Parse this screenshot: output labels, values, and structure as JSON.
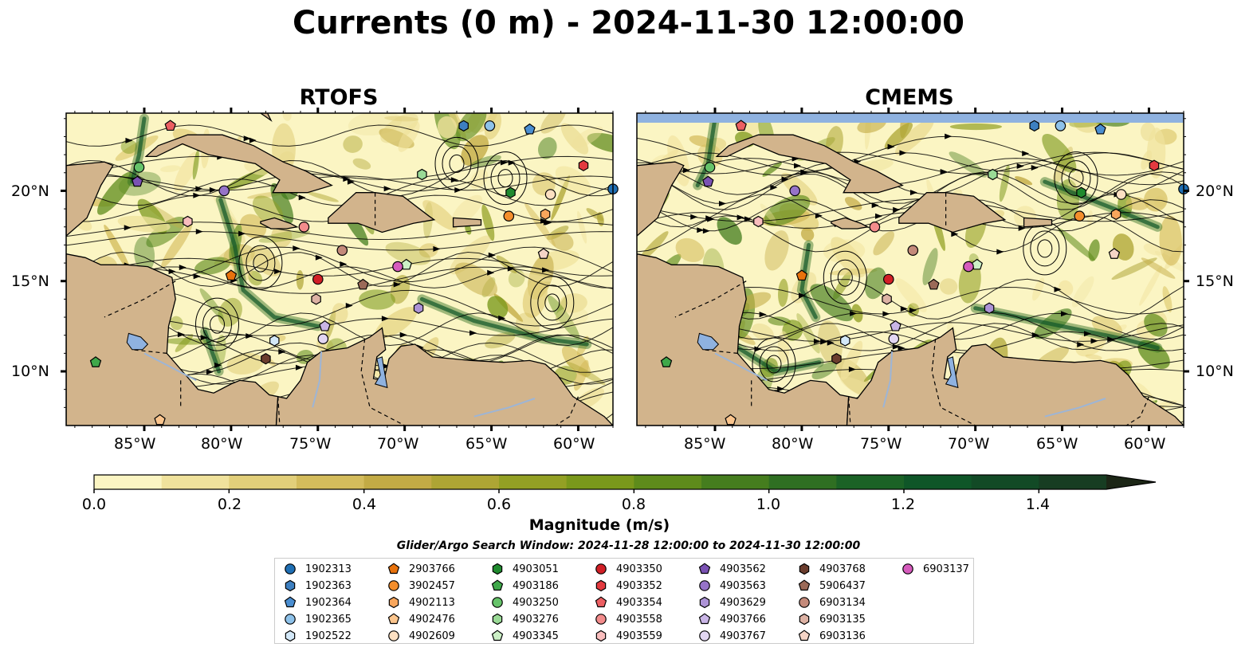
{
  "title": "Currents (0 m) - 2024-11-30 12:00:00",
  "panels": [
    {
      "title": "RTOFS"
    },
    {
      "title": "CMEMS"
    }
  ],
  "axes": {
    "lon_labels": [
      "85°W",
      "80°W",
      "75°W",
      "70°W",
      "65°W",
      "60°W"
    ],
    "lat_labels": [
      "20°N",
      "15°N",
      "10°N"
    ],
    "lon_range": [
      -89.5,
      -58.0
    ],
    "lat_range": [
      7.0,
      24.3
    ]
  },
  "colorbar": {
    "label": "Magnitude (m/s)",
    "ticks": [
      "0.0",
      "0.2",
      "0.4",
      "0.6",
      "0.8",
      "1.0",
      "1.2",
      "1.4"
    ],
    "range": [
      0.0,
      1.5
    ],
    "extend": "max",
    "colors": [
      "#fbf5c3",
      "#f0e29c",
      "#e2cf7a",
      "#d4bc5c",
      "#c3ab45",
      "#aea534",
      "#93a024",
      "#7a981b",
      "#5e8b1b",
      "#457d1e",
      "#2f6f22",
      "#1b6226",
      "#0f5628",
      "#124a26",
      "#173d22",
      "#1a3119",
      "#1c2616"
    ]
  },
  "search_window": "Glider/Argo Search Window: 2024-11-28 12:00:00 to 2024-11-30 12:00:00",
  "land_color": "#d2b48c",
  "ocean_low_color": "#fbf5c3",
  "lake_color": "#8fb2e0",
  "legend": [
    {
      "id": "1902313",
      "marker": "circle",
      "color": "#1f6fb4"
    },
    {
      "id": "1902363",
      "marker": "hexagon",
      "color": "#3d7fc0"
    },
    {
      "id": "1902364",
      "marker": "pentagon",
      "color": "#4a8ed1"
    },
    {
      "id": "1902365",
      "marker": "circle",
      "color": "#8ec2ea"
    },
    {
      "id": "1902522",
      "marker": "hexagon",
      "color": "#d3e8f8"
    },
    {
      "id": "2903766",
      "marker": "pentagon",
      "color": "#e8720c"
    },
    {
      "id": "3902457",
      "marker": "circle",
      "color": "#f48e2c"
    },
    {
      "id": "4902113",
      "marker": "hexagon",
      "color": "#f8a65c"
    },
    {
      "id": "4902476",
      "marker": "pentagon",
      "color": "#fbc58d"
    },
    {
      "id": "4902609",
      "marker": "circle",
      "color": "#fde0c2"
    },
    {
      "id": "4903051",
      "marker": "hexagon",
      "color": "#1f8a2e"
    },
    {
      "id": "4903186",
      "marker": "pentagon",
      "color": "#3fa84a"
    },
    {
      "id": "4903250",
      "marker": "circle",
      "color": "#66c36a"
    },
    {
      "id": "4903276",
      "marker": "hexagon",
      "color": "#9ada96"
    },
    {
      "id": "4903345",
      "marker": "pentagon",
      "color": "#ccf0c6"
    },
    {
      "id": "4903350",
      "marker": "circle",
      "color": "#d11f26"
    },
    {
      "id": "4903352",
      "marker": "hexagon",
      "color": "#e33a3f"
    },
    {
      "id": "4903354",
      "marker": "pentagon",
      "color": "#ec5f62"
    },
    {
      "id": "4903558",
      "marker": "circle",
      "color": "#f38c8c"
    },
    {
      "id": "4903559",
      "marker": "hexagon",
      "color": "#f9bdbd"
    },
    {
      "id": "4903562",
      "marker": "pentagon",
      "color": "#7a52b3"
    },
    {
      "id": "4903563",
      "marker": "circle",
      "color": "#9673c8"
    },
    {
      "id": "4903629",
      "marker": "hexagon",
      "color": "#ad93d6"
    },
    {
      "id": "4903766",
      "marker": "pentagon",
      "color": "#c9b5e6"
    },
    {
      "id": "4903767",
      "marker": "circle",
      "color": "#e2d6f2"
    },
    {
      "id": "4903768",
      "marker": "hexagon",
      "color": "#6b3d2e"
    },
    {
      "id": "5906437",
      "marker": "pentagon",
      "color": "#9b6a58"
    },
    {
      "id": "6903134",
      "marker": "circle",
      "color": "#c48a7a"
    },
    {
      "id": "6903135",
      "marker": "hexagon",
      "color": "#ddb2a4"
    },
    {
      "id": "6903136",
      "marker": "pentagon",
      "color": "#f5d4c6"
    },
    {
      "id": "6903137",
      "marker": "circle",
      "color": "#d65bbd"
    }
  ],
  "float_positions": [
    {
      "id": "1902313",
      "lon": -58.0,
      "lat": 20.1
    },
    {
      "id": "1902363",
      "lon": -66.6,
      "lat": 23.6
    },
    {
      "id": "1902364",
      "lon": -62.8,
      "lat": 23.4
    },
    {
      "id": "1902365",
      "lon": -65.1,
      "lat": 23.6
    },
    {
      "id": "1902522",
      "lon": -77.5,
      "lat": 11.7
    },
    {
      "id": "2903766",
      "lon": -80.0,
      "lat": 15.3
    },
    {
      "id": "3902457",
      "lon": -64.0,
      "lat": 18.6
    },
    {
      "id": "4902113",
      "lon": -61.9,
      "lat": 18.7
    },
    {
      "id": "4902476",
      "lon": -84.1,
      "lat": 7.3
    },
    {
      "id": "4902609",
      "lon": -61.6,
      "lat": 19.8
    },
    {
      "id": "4903051",
      "lon": -63.9,
      "lat": 19.9
    },
    {
      "id": "4903186",
      "lon": -87.8,
      "lat": 10.5
    },
    {
      "id": "4903250",
      "lon": -85.3,
      "lat": 21.3
    },
    {
      "id": "4903276",
      "lon": -69.0,
      "lat": 20.9
    },
    {
      "id": "4903345",
      "lon": -69.9,
      "lat": 15.9
    },
    {
      "id": "4903350",
      "lon": -75.0,
      "lat": 15.1
    },
    {
      "id": "4903352",
      "lon": -59.7,
      "lat": 21.4
    },
    {
      "id": "4903354",
      "lon": -83.5,
      "lat": 23.6
    },
    {
      "id": "4903558",
      "lon": -75.8,
      "lat": 18.0
    },
    {
      "id": "4903559",
      "lon": -82.5,
      "lat": 18.3
    },
    {
      "id": "4903562",
      "lon": -85.4,
      "lat": 20.5
    },
    {
      "id": "4903563",
      "lon": -80.4,
      "lat": 20.0
    },
    {
      "id": "4903629",
      "lon": -69.2,
      "lat": 13.5
    },
    {
      "id": "4903766",
      "lon": -74.6,
      "lat": 12.5
    },
    {
      "id": "4903767",
      "lon": -74.7,
      "lat": 11.8
    },
    {
      "id": "4903768",
      "lon": -78.0,
      "lat": 10.7
    },
    {
      "id": "5906437",
      "lon": -72.4,
      "lat": 14.8
    },
    {
      "id": "6903134",
      "lon": -73.6,
      "lat": 16.7
    },
    {
      "id": "6903135",
      "lon": -75.1,
      "lat": 14.0
    },
    {
      "id": "6903136",
      "lon": -62.0,
      "lat": 16.5
    },
    {
      "id": "6903137",
      "lon": -70.4,
      "lat": 15.8
    }
  ]
}
